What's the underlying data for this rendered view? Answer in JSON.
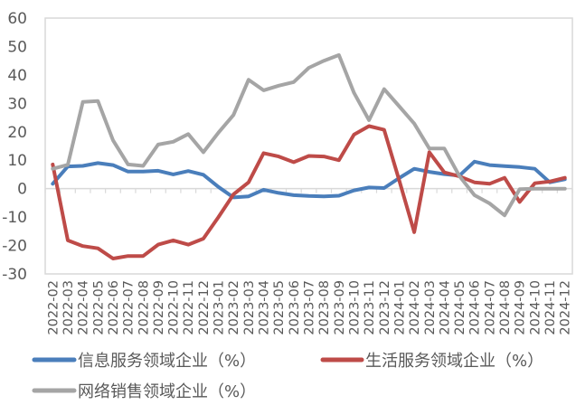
{
  "chart_data": {
    "type": "line",
    "title": "",
    "xlabel": "",
    "ylabel": "",
    "ylim": [
      -30,
      60
    ],
    "yticks": [
      60,
      50,
      40,
      30,
      20,
      10,
      0,
      -10,
      -20,
      -30
    ],
    "grid": false,
    "legend_position": "bottom",
    "categories": [
      "2022-02",
      "2022-03",
      "2022-04",
      "2022-05",
      "2022-06",
      "2022-07",
      "2022-08",
      "2022-09",
      "2022-10",
      "2022-11",
      "2022-12",
      "2023-01",
      "2023-02",
      "2023-03",
      "2023-04",
      "2023-05",
      "2023-06",
      "2023-07",
      "2023-08",
      "2023-09",
      "2023-10",
      "2023-11",
      "2023-12",
      "2024-01",
      "2024-02",
      "2024-03",
      "2024-04",
      "2024-05",
      "2024-06",
      "2024-07",
      "2024-08",
      "2024-09",
      "2024-10",
      "2024-11",
      "2024-12"
    ],
    "series": [
      {
        "name": "信息服务领域企业（%）",
        "color": "#4A7EBB",
        "values": [
          1.7,
          7.8,
          8.0,
          9.0,
          8.3,
          6.0,
          6.0,
          6.3,
          5.0,
          6.2,
          4.9,
          0.6,
          -3.1,
          -2.7,
          -0.4,
          -1.5,
          -2.3,
          -2.6,
          -2.7,
          -2.5,
          -0.6,
          0.4,
          0.2,
          3.7,
          7.0,
          5.9,
          5.1,
          4.6,
          9.5,
          8.3,
          7.9,
          7.6,
          7.0,
          2.2,
          3.3
        ]
      },
      {
        "name": "生活服务领域企业（%）",
        "color": "#BE4B48",
        "values": [
          8.5,
          -18.2,
          -20.2,
          -21.0,
          -24.6,
          -23.7,
          -23.7,
          -19.7,
          -18.2,
          -19.7,
          -17.6,
          -10.0,
          -2.0,
          2.2,
          12.5,
          11.3,
          9.3,
          11.5,
          11.3,
          10.0,
          19.0,
          22.0,
          20.7,
          3.0,
          -15.3,
          12.8,
          5.7,
          4.3,
          2.2,
          1.7,
          3.8,
          -4.7,
          1.9,
          2.5,
          3.8
        ]
      },
      {
        "name": "网络销售领域企业（%）",
        "color": "#A5A5A5",
        "values": [
          7.0,
          8.4,
          30.5,
          30.8,
          17.0,
          8.5,
          8.0,
          15.5,
          16.5,
          19.2,
          12.8,
          19.7,
          25.9,
          38.3,
          34.6,
          36.2,
          37.5,
          42.5,
          45.0,
          47.0,
          33.7,
          24.1,
          35.0,
          29.0,
          22.9,
          14.1,
          14.1,
          4.4,
          -2.3,
          -5.2,
          -9.4,
          -0.2,
          0.0,
          0.0,
          0.0
        ]
      }
    ]
  },
  "legend": {
    "items": [
      {
        "label": "信息服务领域企业（%）",
        "color": "#4A7EBB"
      },
      {
        "label": "生活服务领域企业（%）",
        "color": "#BE4B48"
      },
      {
        "label": "网络销售领域企业（%）",
        "color": "#A5A5A5"
      }
    ]
  },
  "style": {
    "axis_color": "#D9D9D9",
    "border_color": "#D9D9D9",
    "text_color": "#595959"
  }
}
